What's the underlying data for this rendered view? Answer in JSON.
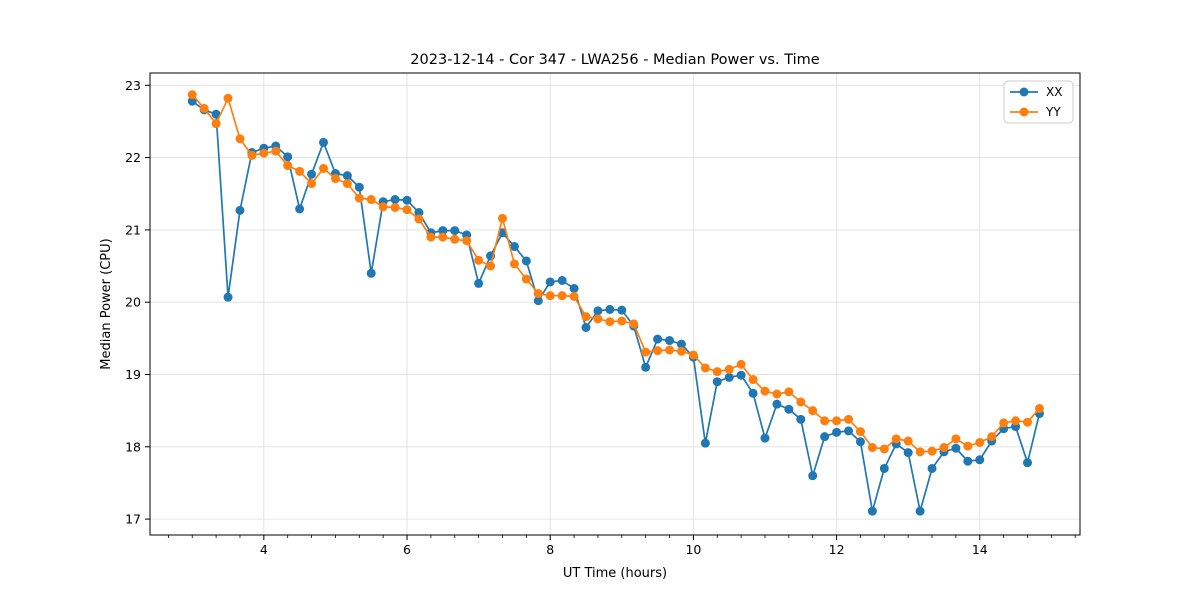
{
  "figure": {
    "title": "2023-12-14 - Cor 347 - LWA256 - Median Power vs. Time",
    "xlabel": "UT Time (hours)",
    "ylabel": "Median Power (CPU)"
  },
  "legend": {
    "position": "upper right",
    "entries": [
      {
        "label": "XX",
        "color": "#1f77b4"
      },
      {
        "label": "YY",
        "color": "#ff7f0e"
      }
    ]
  },
  "chart_data": {
    "type": "line",
    "title": "2023-12-14 - Cor 347 - LWA256 - Median Power vs. Time",
    "xlabel": "UT Time (hours)",
    "ylabel": "Median Power (CPU)",
    "grid": true,
    "legend_position": "upper right",
    "xlim": [
      2.41,
      15.4
    ],
    "ylim": [
      16.78,
      23.17
    ],
    "xticks": [
      4,
      6,
      8,
      10,
      12,
      14
    ],
    "yticks": [
      17,
      18,
      19,
      20,
      21,
      22,
      23
    ],
    "x_minor_tick_step": 0.33333,
    "marker": "circle",
    "x": [
      3.0,
      3.1667,
      3.3333,
      3.5,
      3.6667,
      3.8333,
      4.0,
      4.1667,
      4.3333,
      4.5,
      4.6667,
      4.8333,
      5.0,
      5.1667,
      5.3333,
      5.5,
      5.6667,
      5.8333,
      6.0,
      6.1667,
      6.3333,
      6.5,
      6.6667,
      6.8333,
      7.0,
      7.1667,
      7.3333,
      7.5,
      7.6667,
      7.8333,
      8.0,
      8.1667,
      8.3333,
      8.5,
      8.6667,
      8.8333,
      9.0,
      9.1667,
      9.3333,
      9.5,
      9.6667,
      9.8333,
      10.0,
      10.1667,
      10.3333,
      10.5,
      10.6667,
      10.8333,
      11.0,
      11.1667,
      11.3333,
      11.5,
      11.6667,
      11.8333,
      12.0,
      12.1667,
      12.3333,
      12.5,
      12.6667,
      12.8333,
      13.0,
      13.1667,
      13.3333,
      13.5,
      13.6667,
      13.8333,
      14.0,
      14.1667,
      14.3333,
      14.5,
      14.6667,
      14.8333
    ],
    "series": [
      {
        "name": "XX",
        "color": "#1f77b4",
        "values": [
          22.78,
          22.66,
          22.6,
          20.07,
          21.27,
          22.07,
          22.13,
          22.16,
          22.01,
          21.29,
          21.77,
          22.21,
          21.78,
          21.75,
          21.59,
          20.4,
          21.39,
          21.42,
          21.41,
          21.24,
          20.96,
          20.99,
          20.99,
          20.93,
          20.26,
          20.64,
          20.96,
          20.77,
          20.57,
          20.02,
          20.28,
          20.3,
          20.19,
          19.65,
          19.88,
          19.9,
          19.89,
          19.67,
          19.1,
          19.49,
          19.47,
          19.42,
          19.24,
          18.05,
          18.9,
          18.96,
          18.99,
          18.74,
          18.12,
          18.59,
          18.52,
          18.38,
          17.6,
          18.14,
          18.2,
          18.22,
          18.07,
          17.11,
          17.7,
          18.04,
          17.92,
          17.11,
          17.7,
          17.93,
          17.98,
          17.8,
          17.82,
          18.08,
          18.25,
          18.28,
          17.78,
          18.46
        ]
      },
      {
        "name": "YY",
        "color": "#ff7f0e",
        "values": [
          22.87,
          22.68,
          22.47,
          22.82,
          22.26,
          22.03,
          22.06,
          22.09,
          21.89,
          21.81,
          21.64,
          21.85,
          21.71,
          21.64,
          21.44,
          21.42,
          21.32,
          21.31,
          21.28,
          21.15,
          20.9,
          20.9,
          20.87,
          20.85,
          20.58,
          20.5,
          21.16,
          20.53,
          20.32,
          20.12,
          20.09,
          20.09,
          20.08,
          19.8,
          19.77,
          19.73,
          19.74,
          19.7,
          19.31,
          19.33,
          19.34,
          19.32,
          19.27,
          19.09,
          19.04,
          19.07,
          19.14,
          18.93,
          18.77,
          18.73,
          18.76,
          18.62,
          18.5,
          18.36,
          18.36,
          18.38,
          18.21,
          17.99,
          17.97,
          18.11,
          18.08,
          17.93,
          17.94,
          17.99,
          18.11,
          18.01,
          18.06,
          18.14,
          18.33,
          18.36,
          18.34,
          18.53
        ]
      }
    ]
  }
}
